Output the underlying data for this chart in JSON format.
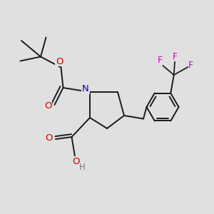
{
  "background_color": "#e0e0e0",
  "bond_color": "#1a1a1a",
  "nitrogen_color": "#0000cc",
  "oxygen_color": "#cc0000",
  "fluorine_color": "#cc00cc",
  "hydrogen_color": "#777777",
  "line_width": 1.4,
  "figsize": [
    3.0,
    3.0
  ],
  "dpi": 100,
  "xlim": [
    0,
    10
  ],
  "ylim": [
    0,
    10
  ]
}
